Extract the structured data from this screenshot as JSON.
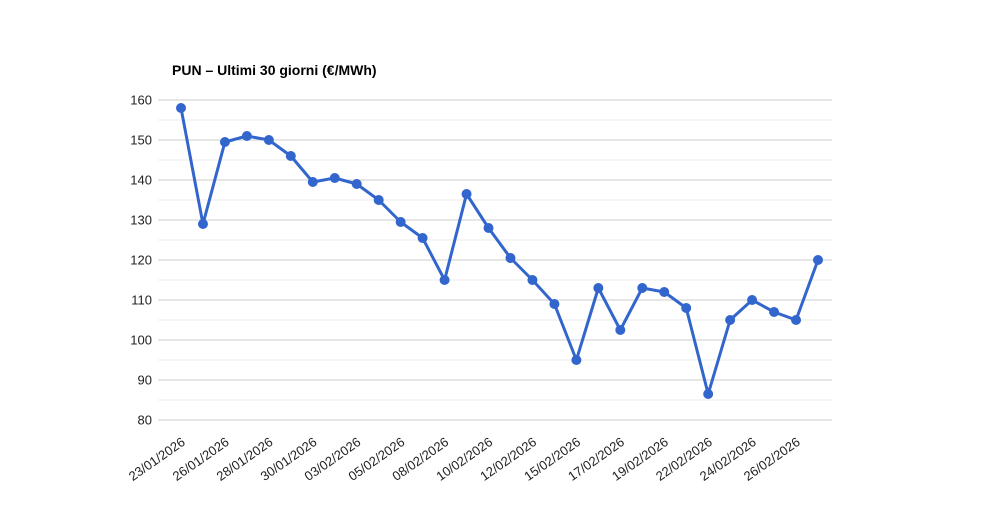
{
  "chart_data": {
    "type": "line",
    "title": "PUN – Ultimi 30 giorni (€/MWh)",
    "xlabel": "",
    "ylabel": "",
    "ylim": [
      80,
      160
    ],
    "y_ticks": [
      80,
      90,
      100,
      110,
      120,
      130,
      140,
      150,
      160
    ],
    "y_minor_ticks": [
      85,
      95,
      105,
      115,
      125,
      135,
      145,
      155
    ],
    "grid": true,
    "legend_position": "none",
    "values": [
      158,
      129,
      149.5,
      151,
      150,
      146,
      139.5,
      140.5,
      139,
      135,
      129.5,
      125.5,
      115,
      136.5,
      128,
      120.5,
      115,
      109,
      95,
      113,
      102.5,
      113,
      112,
      108,
      86.5,
      105,
      110,
      107,
      105,
      120
    ],
    "x_ticks": [
      {
        "i": 0,
        "label": "23/01/2026"
      },
      {
        "i": 2,
        "label": "26/01/2026"
      },
      {
        "i": 4,
        "label": "28/01/2026"
      },
      {
        "i": 6,
        "label": "30/01/2026"
      },
      {
        "i": 8,
        "label": "03/02/2026"
      },
      {
        "i": 10,
        "label": "05/02/2026"
      },
      {
        "i": 12,
        "label": "08/02/2026"
      },
      {
        "i": 14,
        "label": "10/02/2026"
      },
      {
        "i": 16,
        "label": "12/02/2026"
      },
      {
        "i": 18,
        "label": "15/02/2026"
      },
      {
        "i": 20,
        "label": "17/02/2026"
      },
      {
        "i": 22,
        "label": "19/02/2026"
      },
      {
        "i": 24,
        "label": "22/02/2026"
      },
      {
        "i": 26,
        "label": "24/02/2026"
      },
      {
        "i": 28,
        "label": "26/02/2026"
      }
    ],
    "colors": {
      "series": "#3366cc",
      "major_grid": "#cccccc",
      "minor_grid": "#ebebeb",
      "axis_text": "#222222",
      "title_text": "#000000",
      "background": "#ffffff"
    }
  }
}
